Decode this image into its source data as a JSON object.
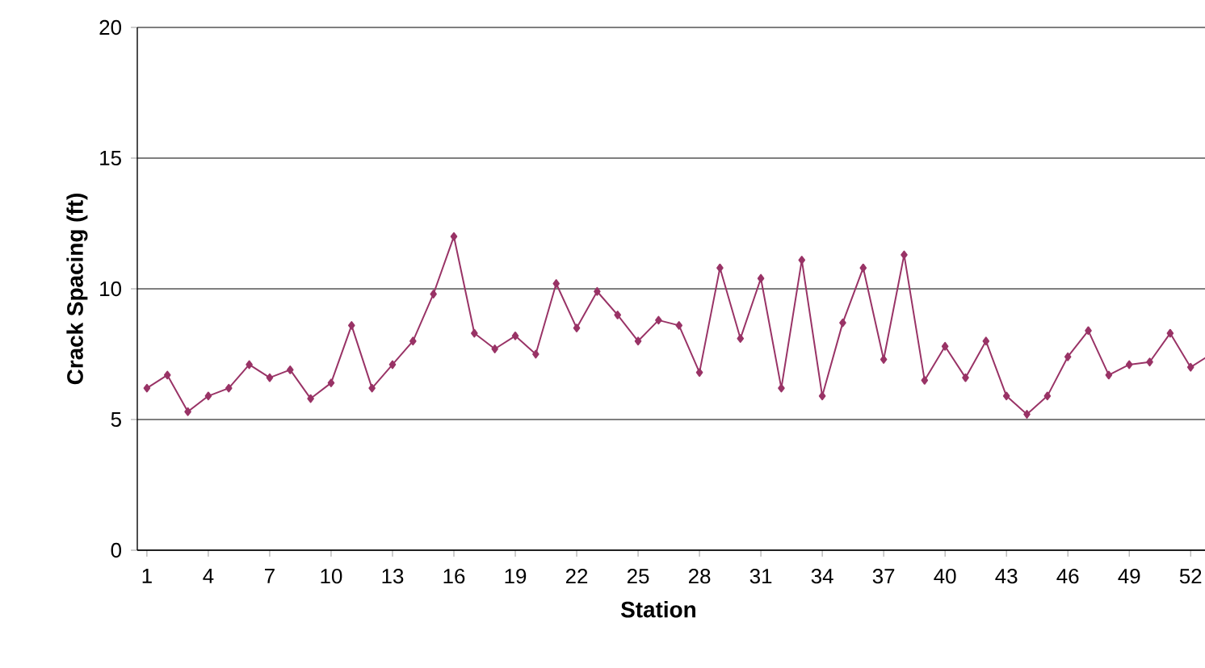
{
  "chart_data": {
    "type": "line",
    "xlabel": "Station",
    "ylabel": "Crack Spacing (ft)",
    "categories": [
      "1",
      null,
      null,
      "4",
      null,
      null,
      "7",
      null,
      null,
      "10",
      null,
      null,
      "13",
      null,
      null,
      "16",
      null,
      null,
      "19",
      null,
      null,
      "22",
      null,
      null,
      "25",
      null,
      null,
      "28",
      null,
      null,
      "31",
      null,
      null,
      "34",
      null,
      null,
      "37",
      null,
      null,
      "40",
      null,
      null,
      "43",
      null,
      null,
      "46",
      null,
      null,
      "49",
      null,
      null,
      "52",
      null
    ],
    "series": [
      {
        "color": "#993366",
        "values": [
          6.2,
          6.7,
          5.3,
          5.9,
          6.2,
          7.1,
          6.6,
          6.9,
          5.8,
          6.4,
          8.6,
          6.2,
          7.1,
          8.0,
          9.8,
          12.0,
          8.3,
          7.7,
          8.2,
          7.5,
          10.2,
          8.5,
          9.9,
          9.0,
          8.0,
          8.8,
          8.6,
          6.8,
          10.8,
          8.1,
          10.4,
          6.2,
          11.1,
          5.9,
          8.7,
          10.8,
          7.3,
          11.3,
          6.5,
          7.8,
          6.6,
          8.0,
          5.9,
          5.2,
          5.9,
          7.4,
          8.4,
          6.7,
          7.1,
          7.2,
          8.3,
          7.0,
          7.5
        ]
      }
    ],
    "ylim": [
      0,
      20
    ],
    "yticks": [
      0,
      5,
      10,
      15,
      20
    ],
    "grid": "y",
    "marker": "diamond",
    "line_style": "solid"
  }
}
